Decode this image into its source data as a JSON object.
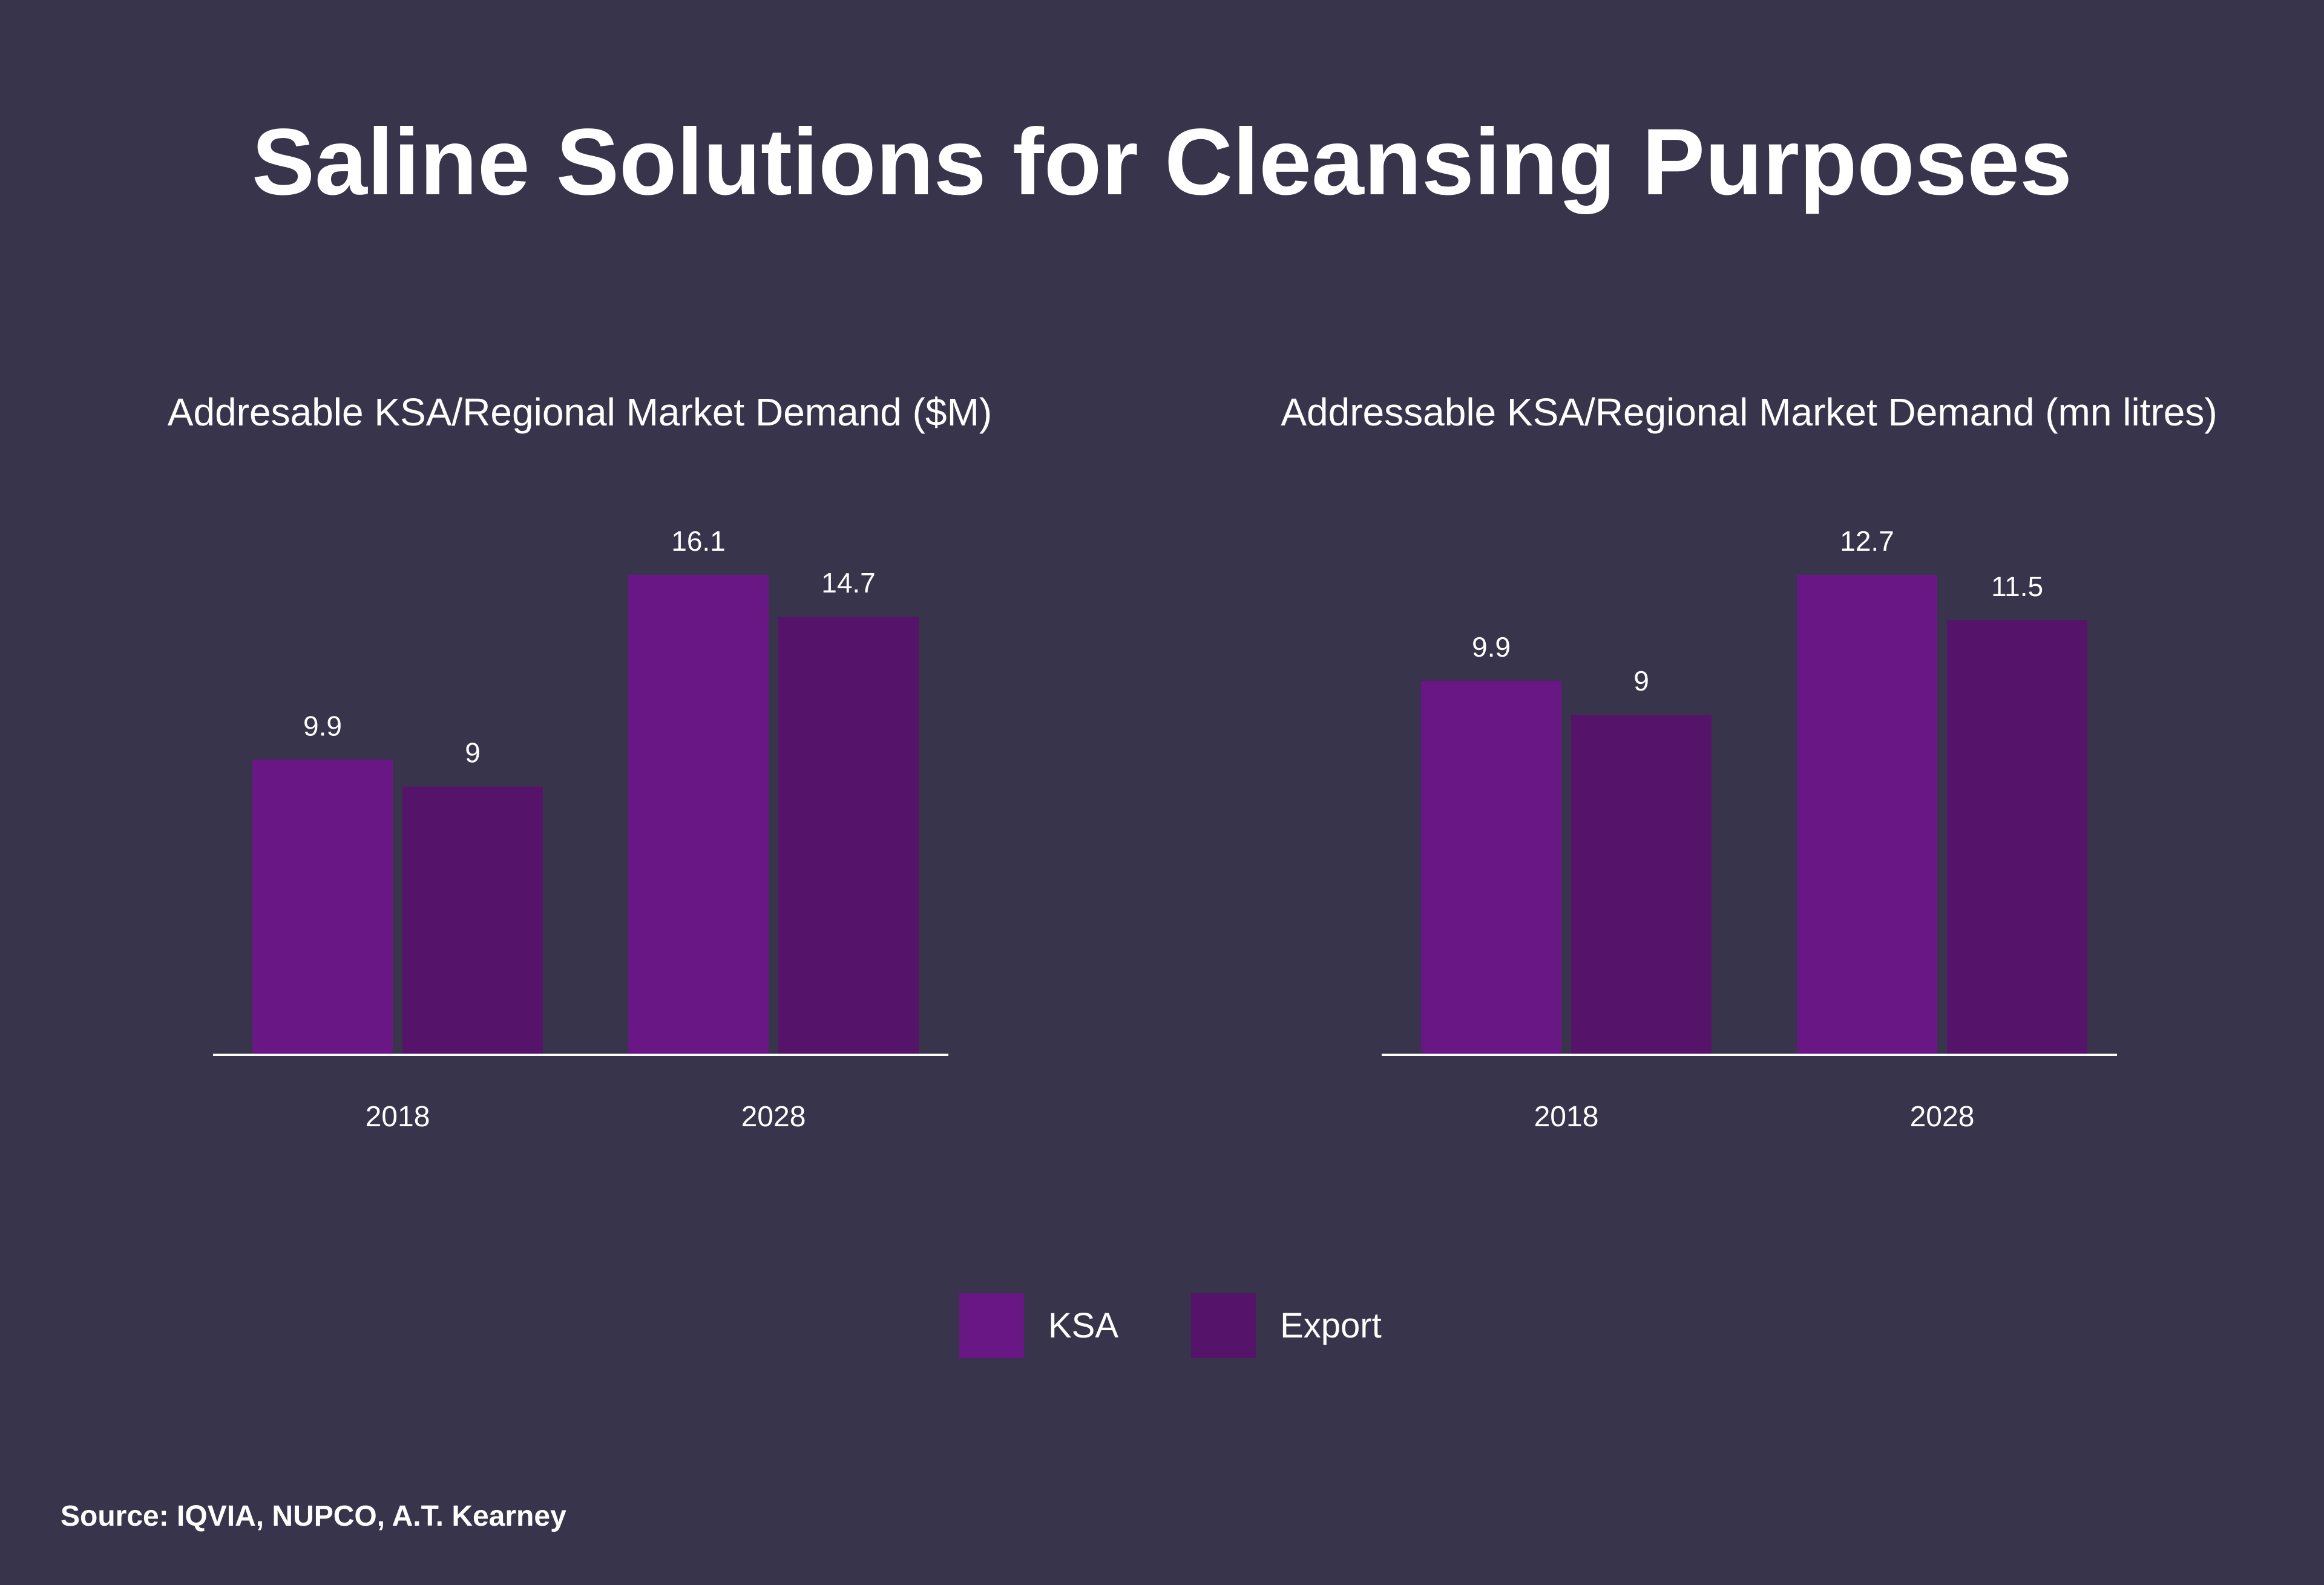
{
  "title": "Saline Solutions for Cleansing Purposes",
  "colors": {
    "background": "#38344b",
    "ksa": "#681785",
    "export": "#55136a",
    "axis": "#ffffff",
    "text": "#ffffff"
  },
  "legend": [
    {
      "label": "KSA",
      "color": "#681785"
    },
    {
      "label": "Export",
      "color": "#55136a"
    }
  ],
  "source": "Source: IQVIA, NUPCO, A.T. Kearney",
  "chart_data": [
    {
      "type": "bar",
      "title": "Addresable KSA/Regional Market Demand ($M)",
      "categories": [
        "2018",
        "2028"
      ],
      "series": [
        {
          "name": "KSA",
          "values": [
            9.9,
            16.1
          ],
          "labels": [
            "9.9",
            "16.1"
          ]
        },
        {
          "name": "Export",
          "values": [
            9,
            14.7
          ],
          "labels": [
            "9",
            "14.7"
          ]
        }
      ],
      "ylim": [
        0,
        16.1
      ],
      "xlabel": "",
      "ylabel": "",
      "grid": false,
      "legend": "bottom-center"
    },
    {
      "type": "bar",
      "title": "Addressable KSA/Regional Market Demand (mn litres)",
      "categories": [
        "2018",
        "2028"
      ],
      "series": [
        {
          "name": "KSA",
          "values": [
            9.9,
            12.7
          ],
          "labels": [
            "9.9",
            "12.7"
          ]
        },
        {
          "name": "Export",
          "values": [
            9,
            11.5
          ],
          "labels": [
            "9",
            "11.5"
          ]
        }
      ],
      "ylim": [
        0,
        12.7
      ],
      "xlabel": "",
      "ylabel": "",
      "grid": false,
      "legend": "bottom-center"
    }
  ]
}
